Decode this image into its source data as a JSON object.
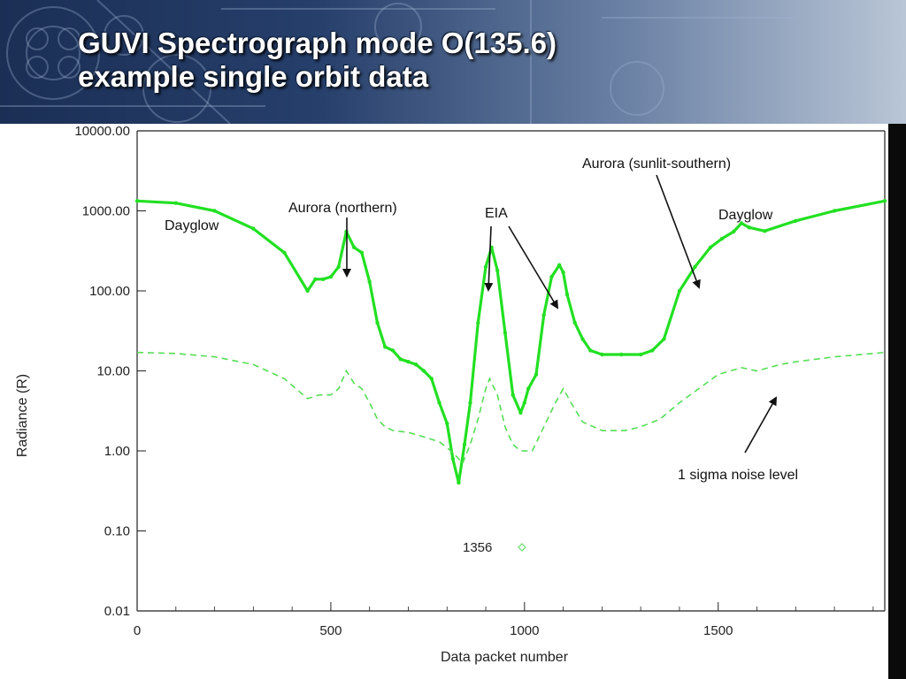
{
  "slide": {
    "title_line1": "GUVI Spectrograph mode O(135.6)",
    "title_line2": "example single orbit data"
  },
  "chart_data": {
    "type": "line",
    "ylabel": "Radiance (R)",
    "xlabel": "Data packet number",
    "x_ticks": [
      "0",
      "500",
      "1000",
      "1500"
    ],
    "y_ticks": [
      "0.01",
      "0.10",
      "1.00",
      "10.00",
      "100.00",
      "1000.00",
      "10000.00"
    ],
    "y_scale": "log",
    "xlim": [
      0,
      1930
    ],
    "ylim": [
      0.01,
      10000
    ],
    "legend_label": "1356",
    "colors": {
      "signal": "#22e022",
      "noise": "#55dd55",
      "legend_marker": "#66dd66"
    },
    "series": [
      {
        "style": "solid",
        "x": [
          0,
          100,
          200,
          300,
          380,
          440,
          460,
          480,
          500,
          520,
          540,
          560,
          580,
          600,
          620,
          640,
          660,
          680,
          700,
          720,
          740,
          760,
          780,
          800,
          815,
          830,
          845,
          860,
          880,
          900,
          915,
          930,
          950,
          970,
          990,
          1000,
          1010,
          1030,
          1050,
          1070,
          1090,
          1100,
          1110,
          1130,
          1150,
          1170,
          1200,
          1250,
          1300,
          1330,
          1360,
          1400,
          1440,
          1480,
          1510,
          1540,
          1560,
          1580,
          1620,
          1700,
          1800,
          1930
        ],
        "y": [
          1330,
          1250,
          1000,
          600,
          300,
          100,
          140,
          140,
          150,
          200,
          550,
          350,
          300,
          130,
          40,
          20,
          18,
          14,
          13,
          12,
          10,
          8,
          4,
          2.2,
          0.8,
          0.4,
          1.2,
          4,
          40,
          200,
          350,
          180,
          30,
          5,
          3,
          4,
          6,
          9,
          50,
          150,
          210,
          170,
          90,
          40,
          25,
          18,
          16,
          16,
          16,
          18,
          25,
          100,
          200,
          350,
          450,
          550,
          700,
          620,
          560,
          750,
          1000,
          1330
        ]
      },
      {
        "style": "dashed",
        "x": [
          0,
          100,
          200,
          300,
          380,
          440,
          470,
          500,
          520,
          540,
          560,
          580,
          600,
          620,
          640,
          660,
          700,
          740,
          780,
          800,
          820,
          840,
          860,
          880,
          900,
          910,
          930,
          950,
          970,
          990,
          1000,
          1020,
          1050,
          1080,
          1100,
          1120,
          1150,
          1200,
          1260,
          1300,
          1350,
          1400,
          1450,
          1500,
          1560,
          1600,
          1660,
          1700,
          1800,
          1930
        ],
        "y": [
          17,
          16.5,
          15,
          12,
          8,
          4.5,
          5,
          5,
          6,
          10,
          7,
          6,
          4,
          2.5,
          2,
          1.8,
          1.7,
          1.5,
          1.3,
          1.1,
          0.9,
          0.7,
          1.2,
          2.5,
          6,
          8,
          5,
          2,
          1.2,
          1,
          1,
          1,
          2,
          4,
          6,
          4,
          2.3,
          1.8,
          1.8,
          2,
          2.5,
          4,
          6,
          9,
          11,
          10,
          12,
          13,
          15,
          17
        ]
      }
    ],
    "annotations": {
      "dayglow_left": "Dayglow",
      "aurora_northern": "Aurora (northern)",
      "eia": "EIA",
      "aurora_southern": "Aurora (sunlit-southern)",
      "dayglow_right": "Dayglow",
      "noise": "1 sigma noise level"
    }
  }
}
